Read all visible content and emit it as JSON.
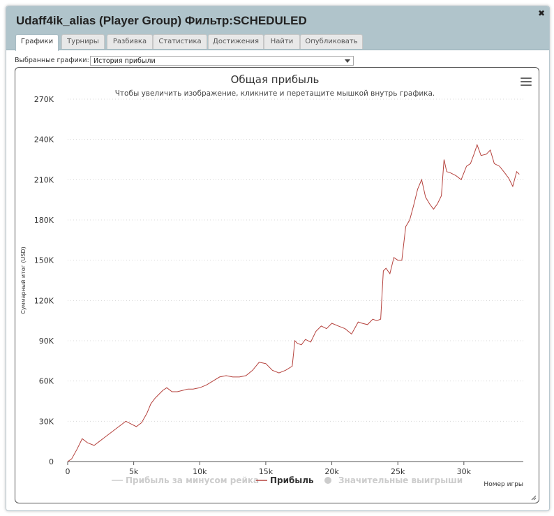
{
  "window": {
    "title": "Udaff4ik_alias (Player Group) Фильтр:SCHEDULED",
    "close_glyph": "✖"
  },
  "tabs": [
    {
      "label": "Графики",
      "active": true
    },
    {
      "label": "Турниры",
      "active": false
    },
    {
      "label": "Разбивка",
      "active": false
    },
    {
      "label": "Статистика",
      "active": false
    },
    {
      "label": "Достижения",
      "active": false
    },
    {
      "label": "Найти",
      "active": false
    },
    {
      "label": "Опубликовать",
      "active": false
    }
  ],
  "selector": {
    "label": "Выбранные графики:",
    "value": "История прибыли"
  },
  "chart_data": {
    "type": "line",
    "title": "Общая прибыль",
    "subtitle": "Чтобы увеличить изображение, кликните и перетащите мышкой внутрь графика.",
    "xlabel": "Номер игры",
    "ylabel": "Суммарный итог (USD)",
    "xlim": [
      0,
      34500
    ],
    "ylim": [
      0,
      270000
    ],
    "x_ticks": [
      0,
      5000,
      10000,
      15000,
      20000,
      25000,
      30000
    ],
    "x_tick_labels": [
      "0",
      "5k",
      "10k",
      "15k",
      "20k",
      "25k",
      "30k"
    ],
    "y_ticks": [
      0,
      30000,
      60000,
      90000,
      120000,
      150000,
      180000,
      210000,
      240000,
      270000
    ],
    "y_tick_labels": [
      "0",
      "30K",
      "60K",
      "90K",
      "120K",
      "150K",
      "180K",
      "210K",
      "240K",
      "270K"
    ],
    "grid": "horizontal-dotted",
    "legend_position": "bottom",
    "colors": {
      "profit": "#b5423d",
      "hidden": "#cccccc",
      "axis": "#333333"
    },
    "legend": [
      {
        "name": "Прибыль за минусом рейка",
        "visible": false,
        "marker": "line"
      },
      {
        "name": "Прибыль",
        "visible": true,
        "marker": "line"
      },
      {
        "name": "Значительные выигрыши",
        "visible": false,
        "marker": "circle"
      }
    ],
    "series": [
      {
        "name": "Прибыль",
        "x": [
          0,
          300,
          700,
          1100,
          1500,
          2000,
          2400,
          2800,
          3200,
          3600,
          4000,
          4400,
          4800,
          5200,
          5600,
          6000,
          6300,
          6600,
          6900,
          7200,
          7500,
          7900,
          8300,
          8700,
          9100,
          9500,
          10000,
          10500,
          11000,
          11500,
          12000,
          12500,
          13000,
          13500,
          14000,
          14500,
          15000,
          15500,
          16000,
          16500,
          17000,
          17200,
          17400,
          17700,
          18000,
          18400,
          18800,
          19200,
          19600,
          20000,
          20500,
          21000,
          21500,
          22000,
          22300,
          22700,
          23100,
          23400,
          23700,
          23900,
          24100,
          24400,
          24700,
          25000,
          25300,
          25600,
          25900,
          26200,
          26500,
          26800,
          27100,
          27400,
          27700,
          28000,
          28300,
          28500,
          28700,
          29000,
          29400,
          29800,
          30200,
          30500,
          30800,
          31000,
          31300,
          31700,
          32000,
          32300,
          32700,
          33100,
          33400,
          33700,
          34000,
          34200
        ],
        "y": [
          0,
          2000,
          9000,
          17000,
          14000,
          12000,
          15000,
          18000,
          21000,
          24000,
          27000,
          30000,
          28000,
          26000,
          29000,
          36000,
          43000,
          47000,
          50000,
          53000,
          55000,
          52000,
          52000,
          53000,
          54000,
          54000,
          55000,
          57000,
          60000,
          63000,
          64000,
          63000,
          63000,
          64000,
          68000,
          74000,
          73000,
          68000,
          66000,
          68000,
          71000,
          90000,
          88000,
          87000,
          91000,
          89000,
          97000,
          101000,
          99000,
          103000,
          101000,
          99000,
          95000,
          104000,
          103000,
          102000,
          106000,
          105000,
          106000,
          142000,
          144000,
          140000,
          152000,
          150000,
          150000,
          175000,
          180000,
          191000,
          203000,
          210000,
          197000,
          192000,
          188000,
          192000,
          198000,
          225000,
          216000,
          215000,
          213000,
          210000,
          220000,
          222000,
          230000,
          236000,
          228000,
          229000,
          232000,
          222000,
          220000,
          215000,
          211000,
          205000,
          216000,
          214000
        ]
      }
    ]
  }
}
